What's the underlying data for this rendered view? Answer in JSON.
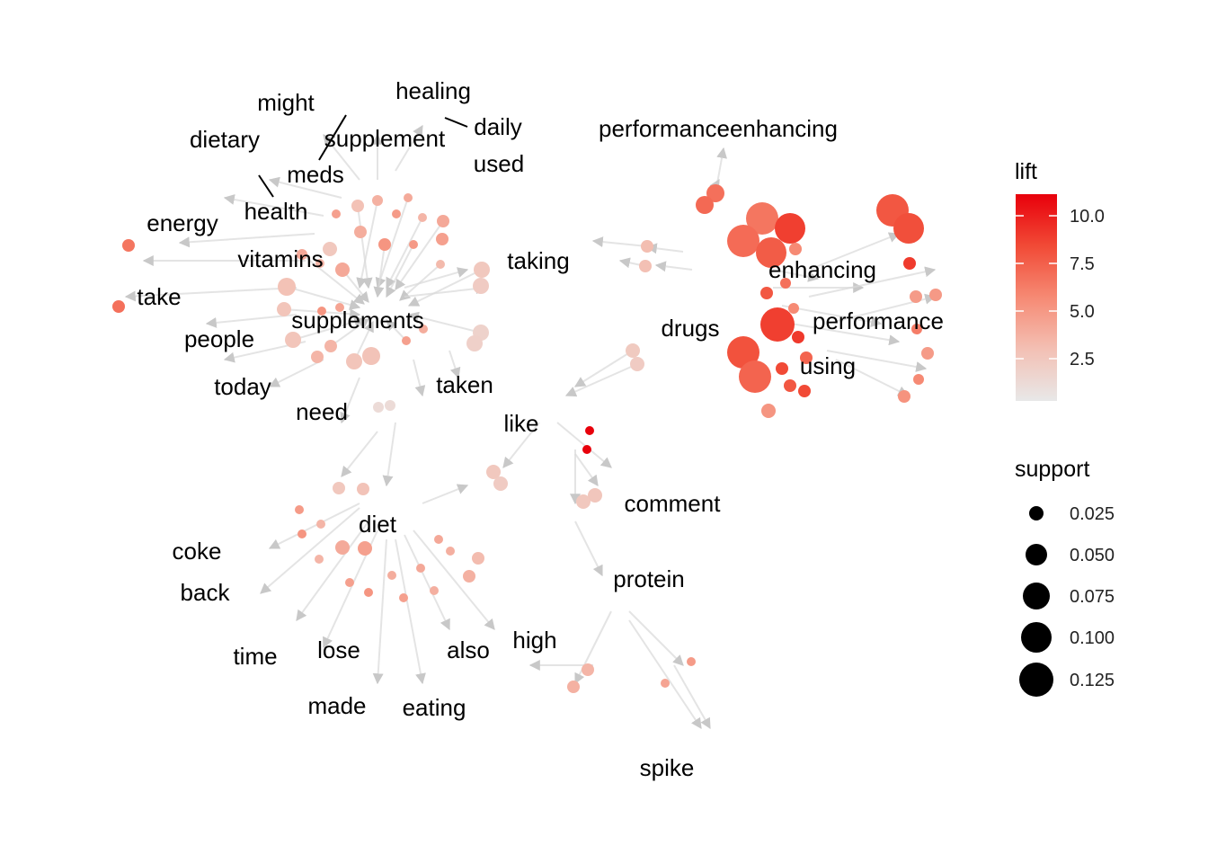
{
  "colors": {
    "edge": "#d0d0d0",
    "arrow": "#c8c8c8",
    "text": "#000000",
    "lift_low": "#e8e8e8",
    "lift_high": "#e8000b"
  },
  "legend": {
    "lift_title": "lift",
    "lift_ticks": [
      "10.0",
      "7.5",
      "5.0",
      "2.5"
    ],
    "support_title": "support",
    "support_ticks": [
      "0.025",
      "0.050",
      "0.075",
      "0.100",
      "0.125"
    ]
  },
  "words": [
    "healing",
    "might",
    "daily",
    "supplement",
    "dietary",
    "performanceenhancing",
    "used",
    "meds",
    "health",
    "energy",
    "vitamins",
    "taking",
    "enhancing",
    "take",
    "supplements",
    "drugs",
    "performance",
    "people",
    "using",
    "today",
    "taken",
    "need",
    "like",
    "comment",
    "diet",
    "coke",
    "back",
    "protein",
    "high",
    "also",
    "lose",
    "time",
    "made",
    "eating",
    "spike"
  ],
  "rules": {
    "lift_range": [
      0,
      11
    ],
    "support_range": [
      0,
      0.125
    ]
  }
}
